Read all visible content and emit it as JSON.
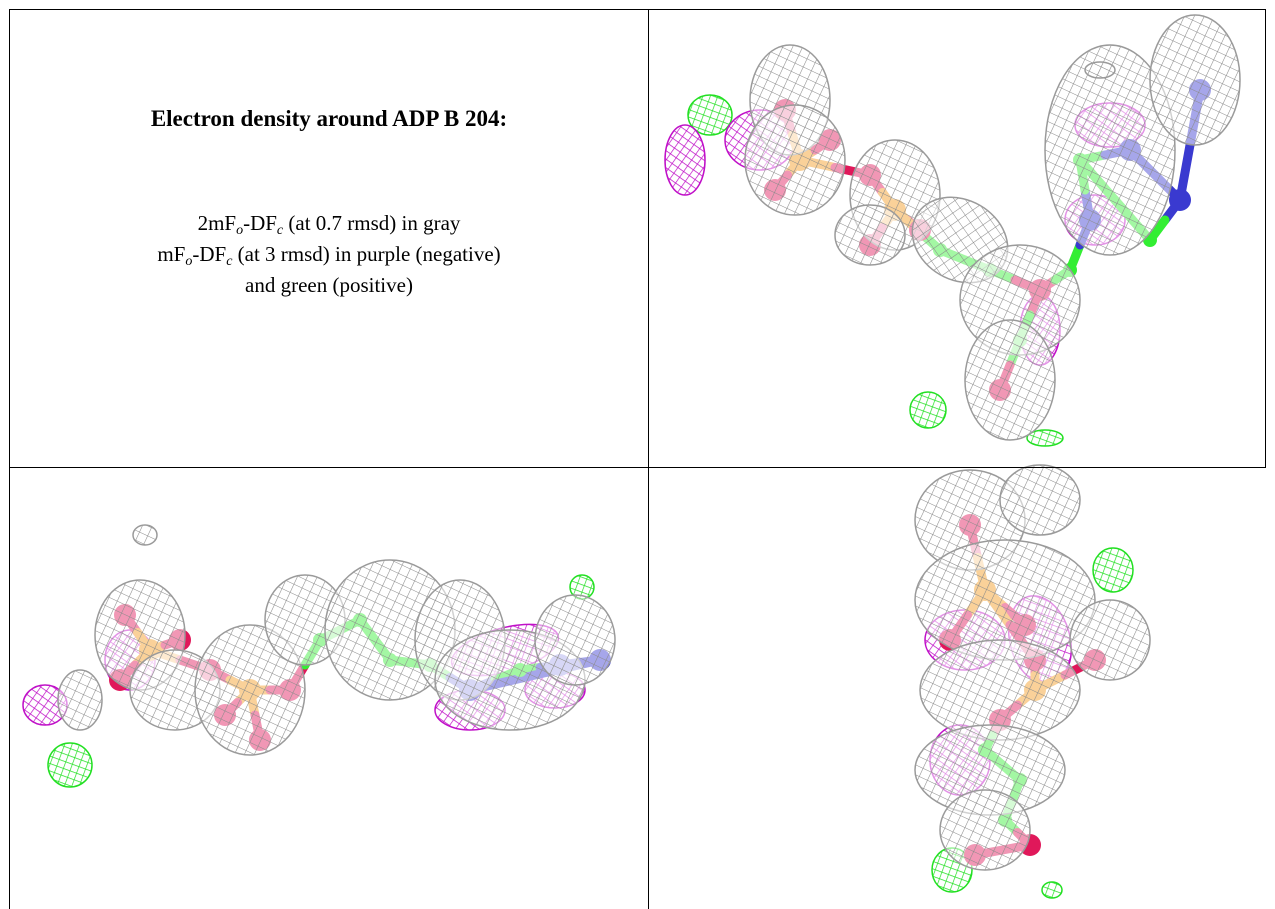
{
  "title": "Electron density around ADP B 204:",
  "caption": [
    [
      "2mF",
      "o",
      "-DF",
      "c",
      " (at 0.7 rmsd) in gray"
    ],
    [
      "mF",
      "o",
      "-DF",
      "c",
      " (at 3 rmsd) in purple (negative)"
    ],
    [
      "and green (positive)"
    ]
  ]
}
